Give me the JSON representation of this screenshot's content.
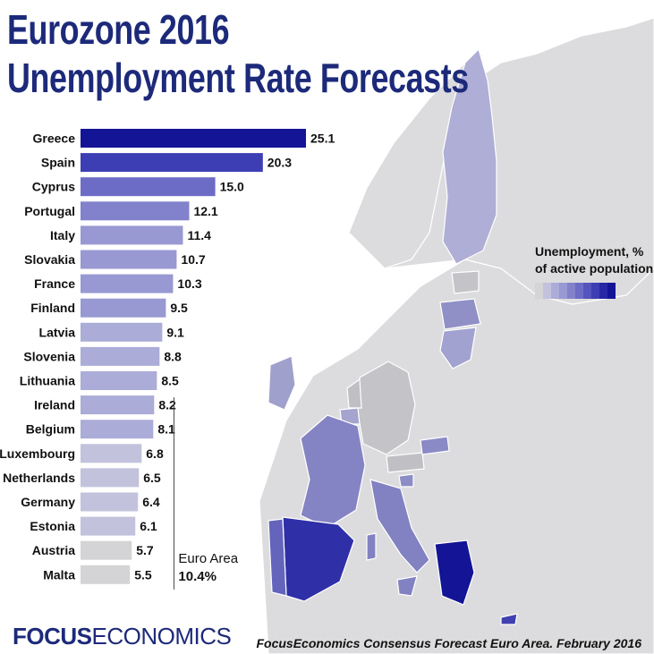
{
  "title": {
    "line1": "Eurozone 2016",
    "line2": "Unemployment Rate Forecasts"
  },
  "chart_data": {
    "type": "bar",
    "orientation": "horizontal",
    "categories": [
      "Greece",
      "Spain",
      "Cyprus",
      "Portugal",
      "Italy",
      "Slovakia",
      "France",
      "Finland",
      "Latvia",
      "Slovenia",
      "Lithuania",
      "Ireland",
      "Belgium",
      "Luxembourg",
      "Netherlands",
      "Germany",
      "Estonia",
      "Austria",
      "Malta"
    ],
    "values": [
      25.1,
      20.3,
      15.0,
      12.1,
      11.4,
      10.7,
      10.3,
      9.5,
      9.1,
      8.8,
      8.5,
      8.2,
      8.1,
      6.8,
      6.5,
      6.4,
      6.1,
      5.7,
      5.5
    ],
    "value_labels": [
      "25.1",
      "20.3",
      "15.0",
      "12.1",
      "11.4",
      "10.7",
      "10.3",
      "9.5",
      "9.1",
      "8.8",
      "8.5",
      "8.2",
      "8.1",
      "6.8",
      "6.5",
      "6.4",
      "6.1",
      "5.7",
      "5.5"
    ],
    "reference": {
      "label": "Euro Area",
      "value": 10.4,
      "value_label": "10.4%"
    },
    "xlim": [
      0,
      25.1
    ],
    "grid": false,
    "color_scale": [
      "#d4d4d6",
      "#c2c2dc",
      "#acacd8",
      "#9898d2",
      "#8282cc",
      "#6c6cc6",
      "#5454be",
      "#3e3eb4",
      "#2828a6",
      "#141496"
    ]
  },
  "legend": {
    "title_line1": "Unemployment, %",
    "title_line2": "of active population"
  },
  "footer": {
    "brand_part1": "FOCUS",
    "brand_part2": "ECONOMICS",
    "source": "FocusEconomics Consensus Forecast Euro Area. February 2016"
  },
  "colors": {
    "title": "#1d2a7a",
    "map_land": "#dcdcde",
    "map_sea": "#ffffff"
  }
}
